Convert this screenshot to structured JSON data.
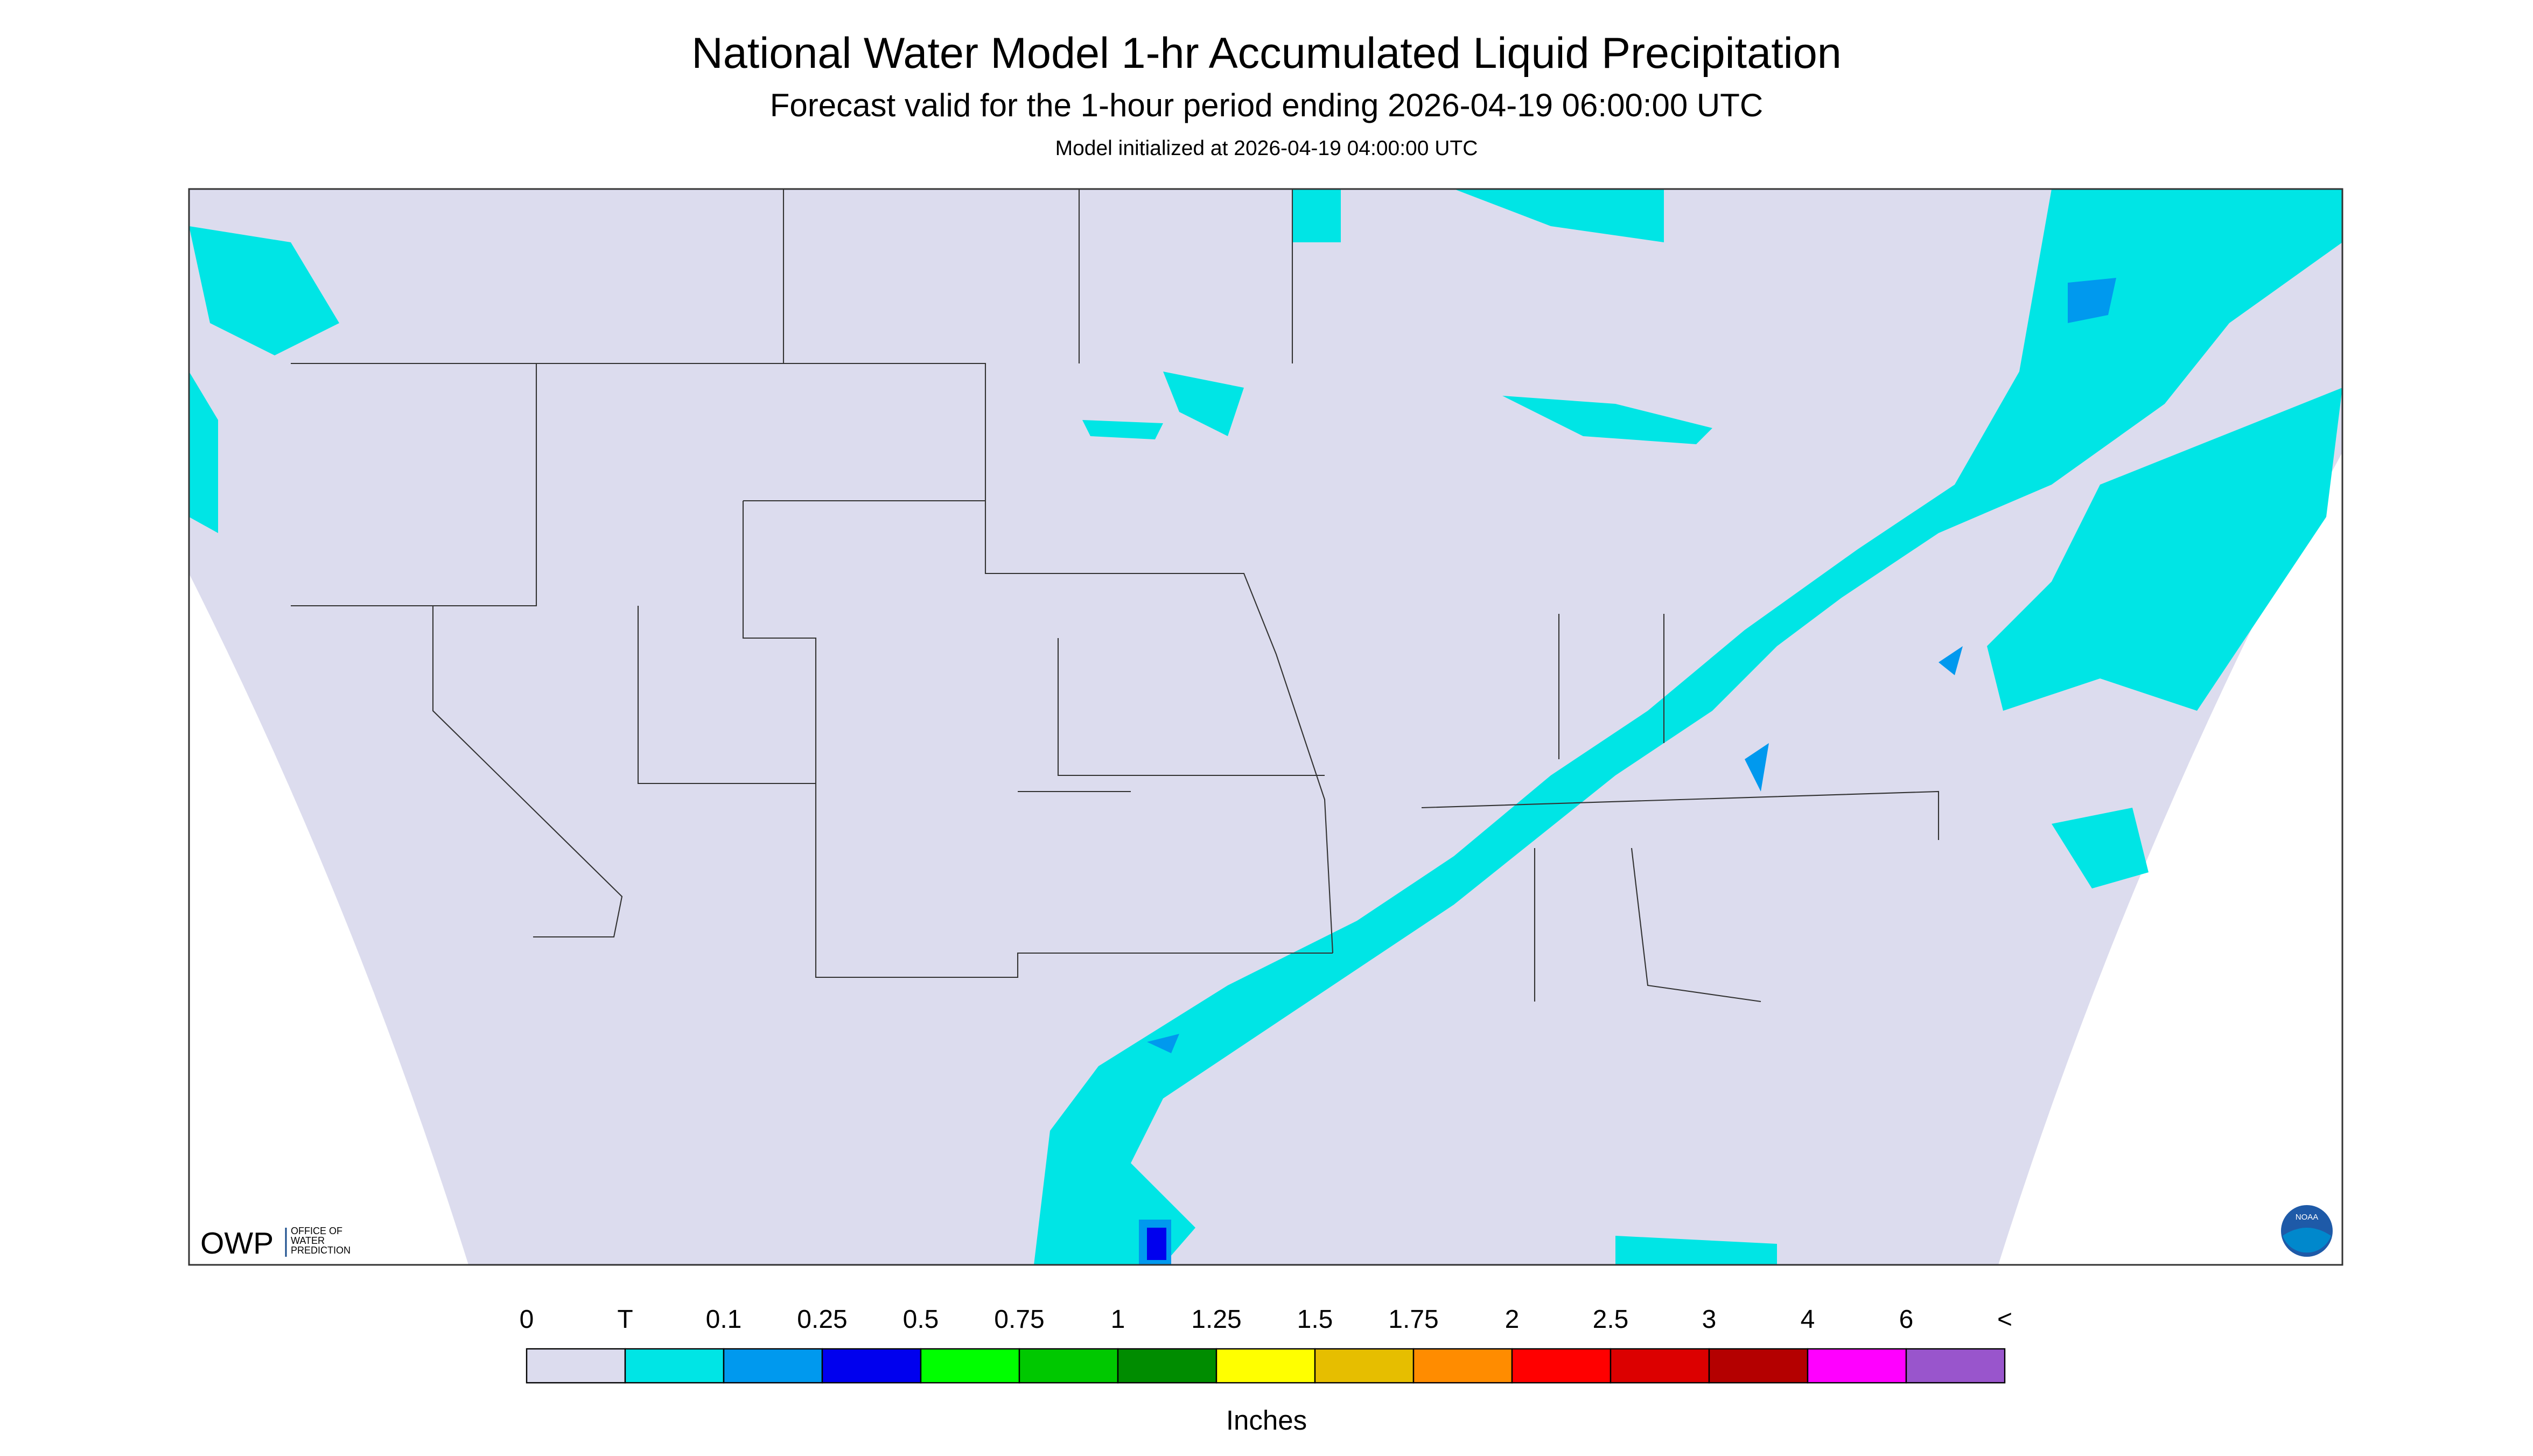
{
  "title": "National Water Model 1-hr Accumulated Liquid Precipitation",
  "subtitle": "Forecast valid for the 1-hour period ending 2026-04-19 06:00:00 UTC",
  "init": "Model initialized at 2026-04-19 04:00:00 UTC",
  "legend": {
    "labels": [
      "0",
      "T",
      "0.1",
      "0.25",
      "0.5",
      "0.75",
      "1",
      "1.25",
      "1.5",
      "1.75",
      "2",
      "2.5",
      "3",
      "4",
      "6",
      "<"
    ],
    "colors": [
      "#dcdcee",
      "#00e5e5",
      "#0099ee",
      "#0000ee",
      "#00ff00",
      "#00c800",
      "#008c00",
      "#ffff00",
      "#e6be00",
      "#ff8c00",
      "#ff0000",
      "#dc0000",
      "#b40000",
      "#ff00ff",
      "#9955cc"
    ],
    "unit": "Inches"
  },
  "logo": {
    "abbr": "OWP",
    "line1": "OFFICE OF",
    "line2": "WATER",
    "line3": "PREDICTION",
    "noaa": "NOAA"
  }
}
